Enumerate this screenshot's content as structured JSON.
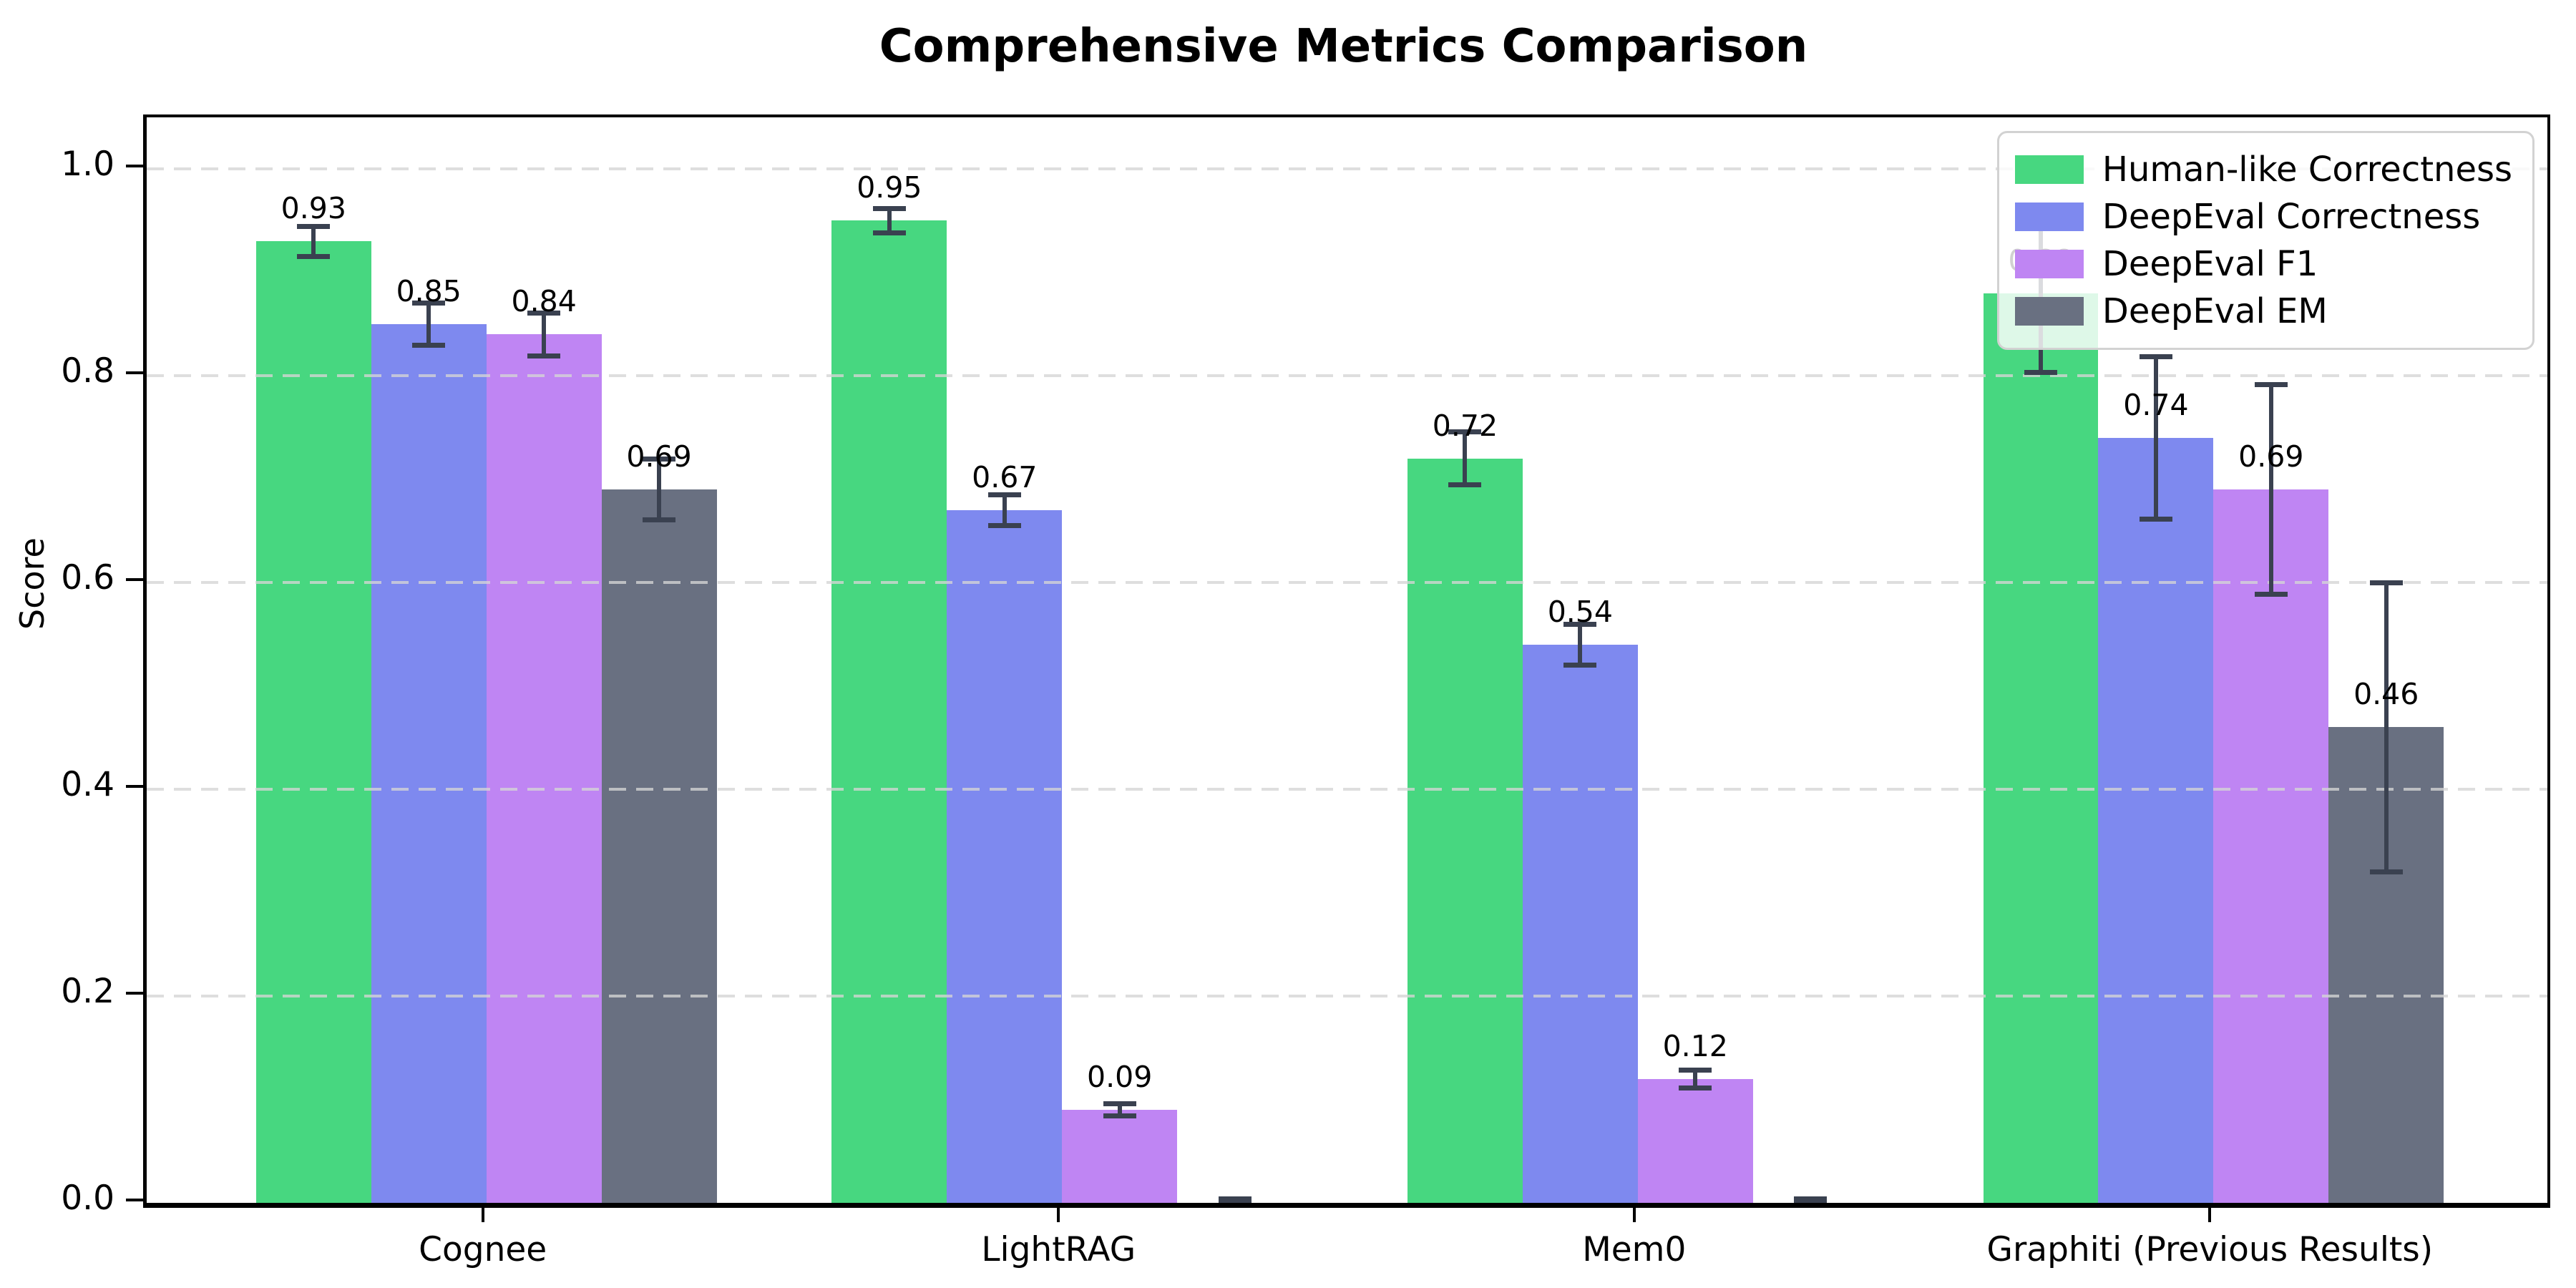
{
  "chart_data": {
    "type": "bar",
    "title": "Comprehensive Metrics Comparison",
    "ylabel": "Score",
    "xlabel": "",
    "categories": [
      "Cognee",
      "LightRAG",
      "Mem0",
      "Graphiti (Previous Results)"
    ],
    "series": [
      {
        "name": "Human-like Correctness",
        "color": "#47d780",
        "values": [
          0.93,
          0.95,
          0.72,
          0.88
        ],
        "errors": [
          0.015,
          0.012,
          0.026,
          0.077
        ],
        "labels": [
          "0.93",
          "0.95",
          "0.72",
          "0.88"
        ]
      },
      {
        "name": "DeepEval Correctness",
        "color": "#7e89ef",
        "values": [
          0.85,
          0.67,
          0.54,
          0.74
        ],
        "errors": [
          0.021,
          0.015,
          0.02,
          0.079
        ],
        "labels": [
          "0.85",
          "0.67",
          "0.54",
          "0.74"
        ]
      },
      {
        "name": "DeepEval F1",
        "color": "#bf85f3",
        "values": [
          0.84,
          0.09,
          0.12,
          0.69
        ],
        "errors": [
          0.021,
          0.006,
          0.009,
          0.102
        ],
        "labels": [
          "0.84",
          "0.09",
          "0.12",
          "0.69"
        ]
      },
      {
        "name": "DeepEval EM",
        "color": "#697081",
        "values": [
          0.69,
          0.0,
          0.0,
          0.46
        ],
        "errors": [
          0.03,
          0.004,
          0.004,
          0.14
        ],
        "labels": [
          "0.69",
          "",
          "",
          "0.46"
        ]
      }
    ],
    "yticks": [
      0.0,
      0.2,
      0.4,
      0.6,
      0.8,
      1.0
    ],
    "ytick_labels": [
      "0.0",
      "0.2",
      "0.4",
      "0.6",
      "0.8",
      "1.0"
    ],
    "ylim": [
      0,
      1.05
    ],
    "grid": "horizontal-dashed",
    "grid_color": "#d5d5d5",
    "legend_position": "upper right",
    "error_bar_color": "#3a4150",
    "background_color": "#ffffff"
  }
}
